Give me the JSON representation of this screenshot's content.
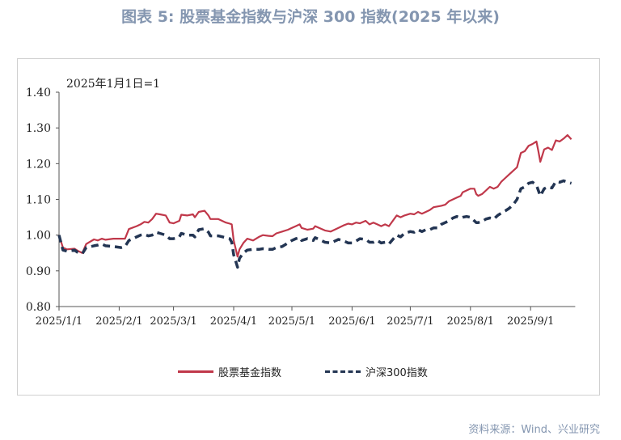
{
  "header": {
    "title": "图表 5:  股票基金指数与沪深 300 指数(2025 年以来)"
  },
  "source": "资料来源：Wind、兴业研究",
  "colors": {
    "fund": "#c0384a",
    "csi": "#233553",
    "title": "#8496b0"
  },
  "chart_data": {
    "type": "line",
    "title": "图表 5:  股票基金指数与沪深 300 指数(2025 年以来)",
    "annotation": "2025年1月1日=1",
    "ylim": [
      0.8,
      1.4
    ],
    "y_ticks": [
      "1.40",
      "1.30",
      "1.20",
      "1.10",
      "1.00",
      "0.90",
      "0.80"
    ],
    "x_ticks": [
      "2025/1/1",
      "2025/2/1",
      "2025/3/1",
      "2025/4/1",
      "2025/5/1",
      "2025/6/1",
      "2025/7/1",
      "2025/8/1",
      "2025/9/1"
    ],
    "x_tick_days": [
      0,
      31,
      59,
      90,
      120,
      151,
      181,
      212,
      243
    ],
    "x_unit": "days since 2025/1/1",
    "legend_position": "bottom",
    "grid": false,
    "series": [
      {
        "name": "股票基金指数",
        "style": "solid",
        "points": [
          [
            0,
            1.0
          ],
          [
            2,
            0.965
          ],
          [
            4,
            0.96
          ],
          [
            8,
            0.962
          ],
          [
            10,
            0.955
          ],
          [
            12,
            0.95
          ],
          [
            14,
            0.975
          ],
          [
            18,
            0.988
          ],
          [
            20,
            0.985
          ],
          [
            22,
            0.99
          ],
          [
            24,
            0.987
          ],
          [
            28,
            0.99
          ],
          [
            34,
            0.99
          ],
          [
            36,
            1.017
          ],
          [
            40,
            1.025
          ],
          [
            42,
            1.03
          ],
          [
            44,
            1.037
          ],
          [
            46,
            1.035
          ],
          [
            48,
            1.045
          ],
          [
            50,
            1.06
          ],
          [
            52,
            1.058
          ],
          [
            55,
            1.055
          ],
          [
            57,
            1.035
          ],
          [
            59,
            1.033
          ],
          [
            62,
            1.04
          ],
          [
            63,
            1.057
          ],
          [
            66,
            1.055
          ],
          [
            69,
            1.058
          ],
          [
            70,
            1.05
          ],
          [
            72,
            1.065
          ],
          [
            75,
            1.068
          ],
          [
            77,
            1.055
          ],
          [
            78,
            1.045
          ],
          [
            82,
            1.045
          ],
          [
            86,
            1.035
          ],
          [
            88,
            1.032
          ],
          [
            89,
            1.03
          ],
          [
            90,
            0.985
          ],
          [
            92,
            0.94
          ],
          [
            93,
            0.96
          ],
          [
            95,
            0.978
          ],
          [
            97,
            0.99
          ],
          [
            100,
            0.985
          ],
          [
            103,
            0.995
          ],
          [
            105,
            1.0
          ],
          [
            108,
            0.998
          ],
          [
            110,
            0.997
          ],
          [
            112,
            1.005
          ],
          [
            115,
            1.01
          ],
          [
            118,
            1.015
          ],
          [
            120,
            1.02
          ],
          [
            122,
            1.025
          ],
          [
            124,
            1.03
          ],
          [
            125,
            1.02
          ],
          [
            128,
            1.015
          ],
          [
            131,
            1.018
          ],
          [
            132,
            1.025
          ],
          [
            134,
            1.02
          ],
          [
            137,
            1.013
          ],
          [
            140,
            1.01
          ],
          [
            142,
            1.015
          ],
          [
            144,
            1.02
          ],
          [
            147,
            1.028
          ],
          [
            149,
            1.032
          ],
          [
            151,
            1.03
          ],
          [
            153,
            1.035
          ],
          [
            155,
            1.033
          ],
          [
            158,
            1.04
          ],
          [
            160,
            1.03
          ],
          [
            162,
            1.035
          ],
          [
            164,
            1.03
          ],
          [
            166,
            1.025
          ],
          [
            168,
            1.03
          ],
          [
            170,
            1.025
          ],
          [
            172,
            1.04
          ],
          [
            174,
            1.055
          ],
          [
            176,
            1.05
          ],
          [
            178,
            1.055
          ],
          [
            181,
            1.06
          ],
          [
            183,
            1.058
          ],
          [
            185,
            1.065
          ],
          [
            187,
            1.06
          ],
          [
            189,
            1.065
          ],
          [
            191,
            1.07
          ],
          [
            193,
            1.078
          ],
          [
            195,
            1.08
          ],
          [
            197,
            1.082
          ],
          [
            199,
            1.085
          ],
          [
            201,
            1.095
          ],
          [
            203,
            1.1
          ],
          [
            205,
            1.105
          ],
          [
            207,
            1.11
          ],
          [
            208,
            1.12
          ],
          [
            210,
            1.125
          ],
          [
            212,
            1.13
          ],
          [
            214,
            1.13
          ],
          [
            215,
            1.115
          ],
          [
            216,
            1.11
          ],
          [
            218,
            1.115
          ],
          [
            220,
            1.125
          ],
          [
            222,
            1.135
          ],
          [
            224,
            1.13
          ],
          [
            226,
            1.135
          ],
          [
            228,
            1.15
          ],
          [
            230,
            1.16
          ],
          [
            232,
            1.17
          ],
          [
            234,
            1.18
          ],
          [
            236,
            1.19
          ],
          [
            237,
            1.21
          ],
          [
            238,
            1.23
          ],
          [
            240,
            1.235
          ],
          [
            242,
            1.25
          ],
          [
            244,
            1.255
          ],
          [
            246,
            1.262
          ],
          [
            247,
            1.235
          ],
          [
            248,
            1.205
          ],
          [
            250,
            1.24
          ],
          [
            252,
            1.245
          ],
          [
            254,
            1.238
          ],
          [
            256,
            1.265
          ],
          [
            258,
            1.262
          ],
          [
            260,
            1.27
          ],
          [
            262,
            1.28
          ],
          [
            264,
            1.268
          ]
        ]
      },
      {
        "name": "沪深300指数",
        "style": "dashed",
        "points": [
          [
            0,
            1.0
          ],
          [
            2,
            0.958
          ],
          [
            4,
            0.955
          ],
          [
            8,
            0.958
          ],
          [
            10,
            0.95
          ],
          [
            12,
            0.948
          ],
          [
            14,
            0.965
          ],
          [
            18,
            0.97
          ],
          [
            20,
            0.972
          ],
          [
            22,
            0.975
          ],
          [
            24,
            0.97
          ],
          [
            28,
            0.968
          ],
          [
            32,
            0.965
          ],
          [
            34,
            0.968
          ],
          [
            36,
            0.985
          ],
          [
            38,
            0.99
          ],
          [
            40,
            0.995
          ],
          [
            42,
            1.0
          ],
          [
            44,
            1.002
          ],
          [
            46,
            0.998
          ],
          [
            48,
            1.0
          ],
          [
            50,
            1.008
          ],
          [
            52,
            1.005
          ],
          [
            55,
            1.0
          ],
          [
            57,
            0.99
          ],
          [
            59,
            0.99
          ],
          [
            62,
            0.995
          ],
          [
            63,
            1.005
          ],
          [
            66,
            1.0
          ],
          [
            69,
            1.0
          ],
          [
            70,
            0.995
          ],
          [
            72,
            1.015
          ],
          [
            75,
            1.018
          ],
          [
            77,
            1.008
          ],
          [
            78,
            0.998
          ],
          [
            82,
            0.998
          ],
          [
            86,
            0.993
          ],
          [
            88,
            0.99
          ],
          [
            89,
            0.98
          ],
          [
            90,
            0.945
          ],
          [
            92,
            0.91
          ],
          [
            93,
            0.935
          ],
          [
            95,
            0.95
          ],
          [
            97,
            0.958
          ],
          [
            100,
            0.96
          ],
          [
            103,
            0.96
          ],
          [
            105,
            0.962
          ],
          [
            108,
            0.96
          ],
          [
            110,
            0.96
          ],
          [
            112,
            0.965
          ],
          [
            115,
            0.968
          ],
          [
            118,
            0.978
          ],
          [
            120,
            0.985
          ],
          [
            122,
            0.99
          ],
          [
            124,
            0.993
          ],
          [
            125,
            0.985
          ],
          [
            128,
            0.99
          ],
          [
            131,
            0.985
          ],
          [
            132,
            0.993
          ],
          [
            134,
            0.988
          ],
          [
            137,
            0.98
          ],
          [
            140,
            0.978
          ],
          [
            142,
            0.983
          ],
          [
            144,
            0.988
          ],
          [
            147,
            0.983
          ],
          [
            149,
            0.978
          ],
          [
            151,
            0.978
          ],
          [
            153,
            0.983
          ],
          [
            155,
            0.99
          ],
          [
            158,
            0.988
          ],
          [
            160,
            0.98
          ],
          [
            162,
            0.98
          ],
          [
            164,
            0.985
          ],
          [
            166,
            0.978
          ],
          [
            168,
            0.98
          ],
          [
            170,
            0.975
          ],
          [
            172,
            0.988
          ],
          [
            174,
            1.0
          ],
          [
            176,
            0.995
          ],
          [
            178,
            1.005
          ],
          [
            181,
            1.01
          ],
          [
            183,
            1.008
          ],
          [
            185,
            1.015
          ],
          [
            187,
            1.01
          ],
          [
            189,
            1.015
          ],
          [
            191,
            1.015
          ],
          [
            193,
            1.02
          ],
          [
            195,
            1.02
          ],
          [
            197,
            1.03
          ],
          [
            199,
            1.035
          ],
          [
            201,
            1.04
          ],
          [
            203,
            1.048
          ],
          [
            205,
            1.052
          ],
          [
            207,
            1.048
          ],
          [
            208,
            1.05
          ],
          [
            210,
            1.052
          ],
          [
            212,
            1.05
          ],
          [
            214,
            1.04
          ],
          [
            215,
            1.035
          ],
          [
            216,
            1.035
          ],
          [
            218,
            1.038
          ],
          [
            220,
            1.045
          ],
          [
            222,
            1.048
          ],
          [
            224,
            1.045
          ],
          [
            226,
            1.055
          ],
          [
            228,
            1.062
          ],
          [
            230,
            1.068
          ],
          [
            232,
            1.075
          ],
          [
            234,
            1.085
          ],
          [
            236,
            1.1
          ],
          [
            237,
            1.115
          ],
          [
            238,
            1.13
          ],
          [
            240,
            1.135
          ],
          [
            242,
            1.145
          ],
          [
            244,
            1.148
          ],
          [
            246,
            1.14
          ],
          [
            247,
            1.125
          ],
          [
            248,
            1.11
          ],
          [
            250,
            1.13
          ],
          [
            252,
            1.135
          ],
          [
            254,
            1.132
          ],
          [
            256,
            1.15
          ],
          [
            258,
            1.148
          ],
          [
            260,
            1.152
          ],
          [
            262,
            1.148
          ],
          [
            264,
            1.145
          ]
        ]
      }
    ]
  }
}
